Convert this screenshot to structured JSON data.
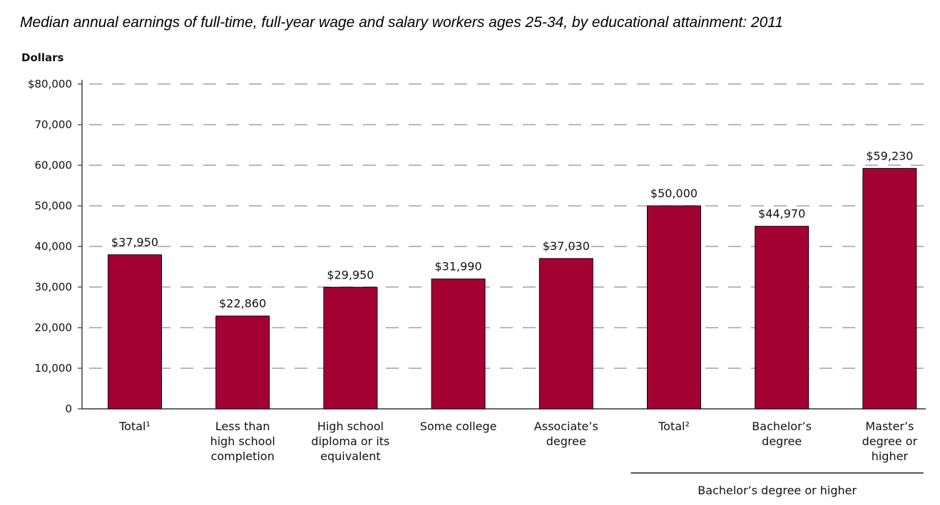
{
  "chart_data": {
    "type": "bar",
    "title": "Median annual earnings of full-time, full-year wage and salary workers ages 25-34, by educational attainment: 2011",
    "ylabel": "Dollars",
    "xlabel": "",
    "ylim": [
      0,
      80000
    ],
    "yticks": [
      0,
      10000,
      20000,
      30000,
      40000,
      50000,
      60000,
      70000,
      80000
    ],
    "ytick_labels": [
      "0",
      "10,000",
      "20,000",
      "30,000",
      "40,000",
      "50,000",
      "60,000",
      "70,000",
      "$80,000"
    ],
    "grid": "horizontal dashed",
    "bar_color": "#a30034",
    "categories": [
      [
        "Total¹"
      ],
      [
        "Less than",
        "high school",
        "completion"
      ],
      [
        "High school",
        "diploma or its",
        "equivalent"
      ],
      [
        "Some college"
      ],
      [
        "Associate’s",
        "degree"
      ],
      [
        "Total²"
      ],
      [
        "Bachelor’s",
        "degree"
      ],
      [
        "Master’s",
        "degree or",
        "higher"
      ]
    ],
    "values": [
      37950,
      22860,
      29950,
      31990,
      37030,
      50000,
      44970,
      59230
    ],
    "value_labels": [
      "$37,950",
      "$22,860",
      "$29,950",
      "$31,990",
      "$37,030",
      "$50,000",
      "$44,970",
      "$59,230"
    ],
    "group": {
      "label": "Bachelor’s degree or higher",
      "first_index": 5,
      "last_index": 7
    }
  }
}
